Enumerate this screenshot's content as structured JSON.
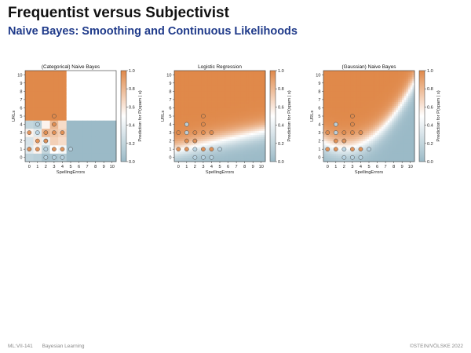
{
  "slide": {
    "title": "Frequentist versus Subjectivist",
    "subtitle": "Naive Bayes: Smoothing and Continuous Likelihoods"
  },
  "footer": {
    "code": "ML:VII-141",
    "section": "Bayesian Learning",
    "copyright": "©STEIN/VÖLSKE 2022"
  },
  "colors": {
    "spam": "#e0894a",
    "ham": "#9bbac7",
    "neutral": "#ffffff",
    "point_spam": "#e0894a",
    "point_ham": "#b8d4e3"
  },
  "chart_data": [
    {
      "type": "heatmap",
      "title": "(Categorical) Naive Bayes",
      "xlabel": "SpellingErrors",
      "ylabel": "URLs",
      "colorbar_label": "Prediction for P(spam | x)",
      "x_ticks": [
        "0",
        "1",
        "2",
        "3",
        "4",
        "5",
        "6",
        "7",
        "8",
        "9",
        "10"
      ],
      "y_ticks": [
        "0",
        "1",
        "2",
        "3",
        "4",
        "5",
        "6",
        "7",
        "8",
        "9",
        "10"
      ],
      "colorbar_ticks": [
        "0.0",
        "0.2",
        "0.4",
        "0.6",
        "0.8",
        "1.0"
      ],
      "xlim": [
        -0.5,
        10.5
      ],
      "ylim": [
        -0.5,
        10.5
      ],
      "points_spam": [
        [
          0,
          1
        ],
        [
          1,
          1
        ],
        [
          3,
          1
        ],
        [
          4,
          1
        ],
        [
          1,
          2
        ],
        [
          2,
          2
        ],
        [
          0,
          3
        ],
        [
          2,
          3
        ],
        [
          3,
          3
        ],
        [
          4,
          3
        ],
        [
          3,
          4
        ],
        [
          3,
          5
        ]
      ],
      "points_ham": [
        [
          2,
          0
        ],
        [
          3,
          0
        ],
        [
          4,
          0
        ],
        [
          0,
          1
        ],
        [
          2,
          1
        ],
        [
          5,
          1
        ],
        [
          2,
          2
        ],
        [
          1,
          3
        ],
        [
          1,
          4
        ]
      ]
    },
    {
      "type": "heatmap",
      "title": "Logistic Regression",
      "xlabel": "SpellingErrors",
      "ylabel": "URLs",
      "colorbar_label": "Prediction for P(spam | x)",
      "x_ticks": [
        "0",
        "1",
        "2",
        "3",
        "4",
        "5",
        "6",
        "7",
        "8",
        "9",
        "10"
      ],
      "y_ticks": [
        "0",
        "1",
        "2",
        "3",
        "4",
        "5",
        "6",
        "7",
        "8",
        "9",
        "10"
      ],
      "colorbar_ticks": [
        "0.0",
        "0.2",
        "0.4",
        "0.6",
        "0.8",
        "1.0"
      ],
      "xlim": [
        -0.5,
        10.5
      ],
      "ylim": [
        -0.5,
        10.5
      ],
      "points_spam": [
        [
          0,
          1
        ],
        [
          1,
          1
        ],
        [
          3,
          1
        ],
        [
          4,
          1
        ],
        [
          1,
          2
        ],
        [
          2,
          2
        ],
        [
          0,
          3
        ],
        [
          2,
          3
        ],
        [
          3,
          3
        ],
        [
          4,
          3
        ],
        [
          3,
          4
        ],
        [
          3,
          5
        ]
      ],
      "points_ham": [
        [
          2,
          0
        ],
        [
          3,
          0
        ],
        [
          4,
          0
        ],
        [
          2,
          1
        ],
        [
          5,
          1
        ],
        [
          2,
          2
        ],
        [
          1,
          3
        ],
        [
          1,
          4
        ]
      ]
    },
    {
      "type": "heatmap",
      "title": "(Gaussian) Naive Bayes",
      "xlabel": "SpellingErrors",
      "ylabel": "URLs",
      "colorbar_label": "Prediction for P(spam | x)",
      "x_ticks": [
        "0",
        "1",
        "2",
        "3",
        "4",
        "5",
        "6",
        "7",
        "8",
        "9",
        "10"
      ],
      "y_ticks": [
        "0",
        "1",
        "2",
        "3",
        "4",
        "5",
        "6",
        "7",
        "8",
        "9",
        "10"
      ],
      "colorbar_ticks": [
        "0.0",
        "0.2",
        "0.4",
        "0.6",
        "0.8",
        "1.0"
      ],
      "xlim": [
        -0.5,
        10.5
      ],
      "ylim": [
        -0.5,
        10.5
      ],
      "points_spam": [
        [
          0,
          1
        ],
        [
          1,
          1
        ],
        [
          3,
          1
        ],
        [
          4,
          1
        ],
        [
          1,
          2
        ],
        [
          2,
          2
        ],
        [
          0,
          3
        ],
        [
          2,
          3
        ],
        [
          3,
          3
        ],
        [
          4,
          3
        ],
        [
          3,
          4
        ],
        [
          3,
          5
        ]
      ],
      "points_ham": [
        [
          2,
          0
        ],
        [
          3,
          0
        ],
        [
          4,
          0
        ],
        [
          2,
          1
        ],
        [
          5,
          1
        ],
        [
          2,
          2
        ],
        [
          1,
          3
        ],
        [
          1,
          4
        ]
      ]
    }
  ]
}
